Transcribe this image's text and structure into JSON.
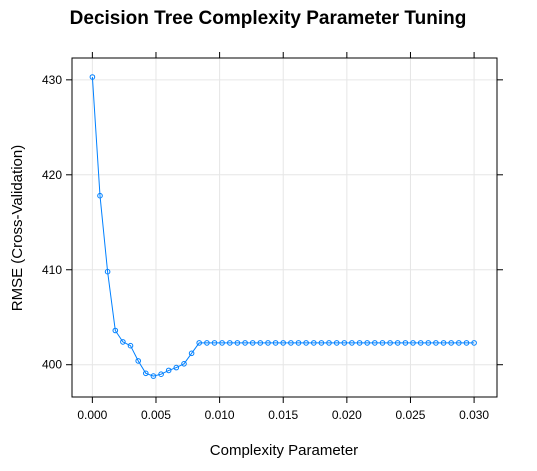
{
  "chart_data": {
    "type": "line",
    "title": "Decision Tree Complexity Parameter Tuning",
    "xlabel": "Complexity Parameter",
    "ylabel": "RMSE (Cross-Validation)",
    "xlim": [
      -0.0016,
      0.0318
    ],
    "ylim": [
      396.6,
      432.3
    ],
    "xticks": [
      0.0,
      0.005,
      0.01,
      0.015,
      0.02,
      0.025,
      0.03
    ],
    "xtick_labels": [
      "0.000",
      "0.005",
      "0.010",
      "0.015",
      "0.020",
      "0.025",
      "0.030"
    ],
    "yticks": [
      400,
      410,
      420,
      430
    ],
    "ytick_labels": [
      "400",
      "410",
      "420",
      "430"
    ],
    "grid": true,
    "color": "#0080ff",
    "marker": "open-circle",
    "series": [
      {
        "x": [
          0.0,
          0.0006,
          0.0012,
          0.0018,
          0.0024,
          0.003,
          0.0036,
          0.0042,
          0.0048,
          0.0054,
          0.006,
          0.0066,
          0.0072,
          0.0078,
          0.0084,
          0.009,
          0.0096,
          0.0102,
          0.0108,
          0.0114,
          0.012,
          0.0126,
          0.0132,
          0.0138,
          0.0144,
          0.015,
          0.0156,
          0.0162,
          0.0168,
          0.0174,
          0.018,
          0.0186,
          0.0192,
          0.0198,
          0.0204,
          0.021,
          0.0216,
          0.0222,
          0.0228,
          0.0234,
          0.024,
          0.0246,
          0.0252,
          0.0258,
          0.0264,
          0.027,
          0.0276,
          0.0282,
          0.0288,
          0.0294,
          0.03
        ],
        "values": [
          430.3,
          417.8,
          409.8,
          403.6,
          402.4,
          402.0,
          400.4,
          399.1,
          398.8,
          399.0,
          399.4,
          399.7,
          400.1,
          401.2,
          402.3,
          402.3,
          402.3,
          402.3,
          402.3,
          402.3,
          402.3,
          402.3,
          402.3,
          402.3,
          402.3,
          402.3,
          402.3,
          402.3,
          402.3,
          402.3,
          402.3,
          402.3,
          402.3,
          402.3,
          402.3,
          402.3,
          402.3,
          402.3,
          402.3,
          402.3,
          402.3,
          402.3,
          402.3,
          402.3,
          402.3,
          402.3,
          402.3,
          402.3,
          402.3,
          402.3,
          402.3
        ]
      }
    ]
  }
}
